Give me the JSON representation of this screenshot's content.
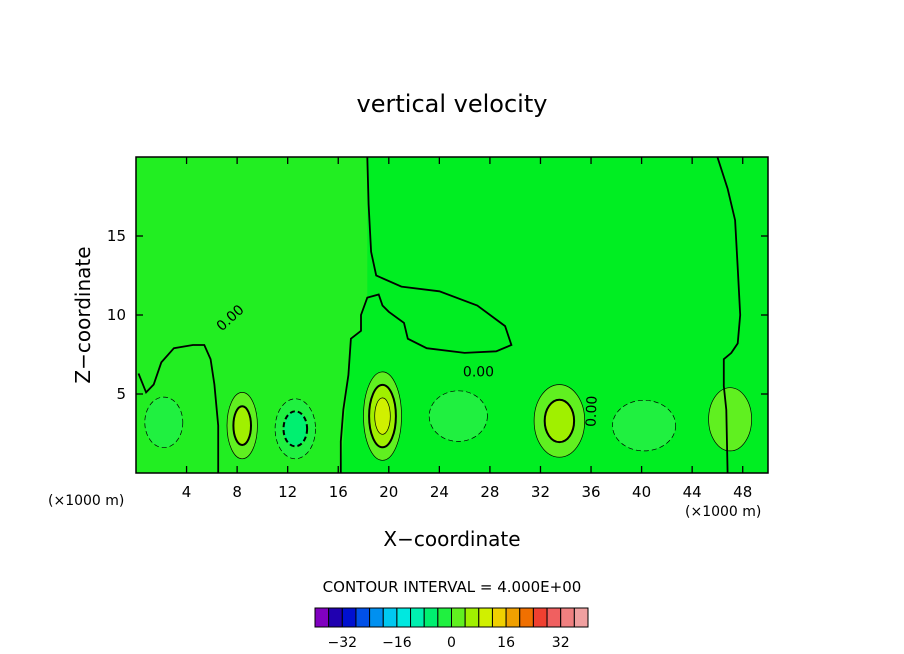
{
  "chart_data": {
    "type": "contour",
    "title": "vertical velocity",
    "xlabel": "X−coordinate",
    "ylabel": "Z−coordinate",
    "x_unit_left": "(×1000 m)",
    "x_unit_right": "(×1000 m)",
    "xlim": [
      0,
      50
    ],
    "ylim": [
      0,
      20
    ],
    "x_ticks": [
      4,
      8,
      12,
      16,
      20,
      24,
      28,
      32,
      36,
      40,
      44,
      48
    ],
    "y_ticks": [
      5,
      10,
      15
    ],
    "contour_interval_text": "CONTOUR INTERVAL = 4.000E+00",
    "contour_interval": 4,
    "contour_labels": [
      "0.00",
      "0.00",
      "0.00"
    ],
    "colorbar": {
      "colors": [
        "#8000c0",
        "#2000b0",
        "#0010d0",
        "#0050e8",
        "#0090f0",
        "#00c8f0",
        "#00e8e0",
        "#00f0b0",
        "#00f070",
        "#20f040",
        "#60f020",
        "#a0f000",
        "#d0f000",
        "#f0d000",
        "#f0a000",
        "#f07000",
        "#f04030",
        "#f06060",
        "#f08080",
        "#f0a0a0"
      ],
      "levels": [
        -36,
        -32,
        -28,
        -24,
        -20,
        -16,
        -12,
        -8,
        -4,
        0,
        4,
        8,
        12,
        16,
        20,
        24,
        28,
        32,
        36
      ],
      "tick_labels": [
        "−32",
        "−16",
        "0",
        "16",
        "32"
      ],
      "tick_values": [
        -32,
        -16,
        0,
        16,
        32
      ]
    },
    "cells": [
      {
        "x": 2.2,
        "z": 3.2,
        "rx": 1.5,
        "rz": 1.6,
        "value": -6
      },
      {
        "x": 8.4,
        "z": 3.0,
        "rx": 1.2,
        "rz": 2.1,
        "value": 10
      },
      {
        "x": 12.6,
        "z": 2.8,
        "rx": 1.6,
        "rz": 1.9,
        "value": -9
      },
      {
        "x": 19.5,
        "z": 3.6,
        "rx": 1.5,
        "rz": 2.8,
        "value": 14
      },
      {
        "x": 25.5,
        "z": 3.6,
        "rx": 2.3,
        "rz": 1.6,
        "value": -7
      },
      {
        "x": 33.5,
        "z": 3.3,
        "rx": 2.0,
        "rz": 2.3,
        "value": 10
      },
      {
        "x": 40.2,
        "z": 3.0,
        "rx": 2.5,
        "rz": 1.6,
        "value": -7
      },
      {
        "x": 47.0,
        "z": 3.4,
        "rx": 1.7,
        "rz": 2.0,
        "value": 7
      }
    ]
  }
}
